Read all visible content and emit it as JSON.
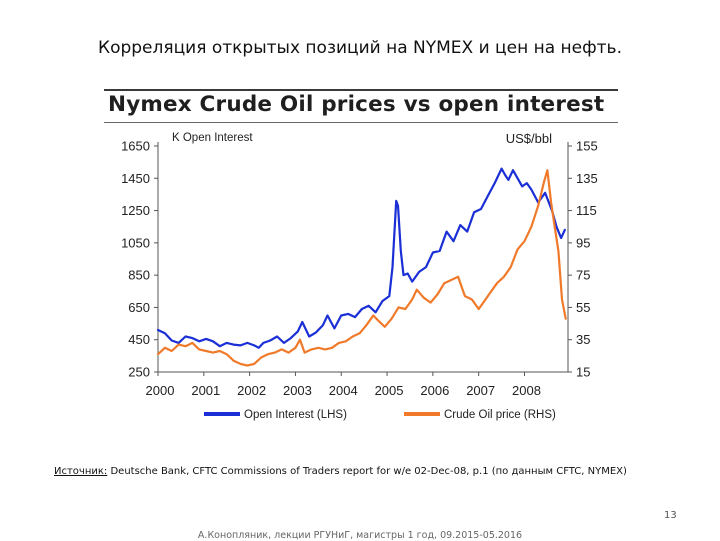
{
  "slide": {
    "title": "Корреляция открытых позиций на NYMEX и цен на нефть.",
    "source_label": "Источник:",
    "source_text": " Deutsche Bank, CFTC Commissions of Traders report for w/e 02-Dec-08, p.1 (по данным CFTC, NYMEX)",
    "page_number": "13",
    "footer": "А.Конопляник, лекции РГУНиГ, магистры 1 год, 09.2015-05.2016"
  },
  "colors": {
    "open_interest": "#1a2fd6",
    "crude_oil": "#f07a2a",
    "axis": "#555555",
    "text": "#222222"
  },
  "chart_data": {
    "type": "line",
    "title": "Nymex Crude Oil prices vs open interest",
    "left_axis_title": "K Open Interest",
    "right_axis_title": "US$/bbl",
    "left_ticks": [
      250,
      450,
      650,
      850,
      1050,
      1250,
      1450,
      1650
    ],
    "right_ticks": [
      15,
      35,
      55,
      75,
      95,
      115,
      135,
      155
    ],
    "ylim_left": [
      250,
      1650
    ],
    "ylim_right": [
      15,
      155
    ],
    "x_ticks": [
      "2000",
      "2001",
      "2002",
      "2003",
      "2004",
      "2005",
      "2006",
      "2007",
      "2008"
    ],
    "xlim": [
      2000,
      2008.95
    ],
    "series": [
      {
        "name": "Open Interest (LHS)",
        "axis": "left",
        "x": [
          2000.0,
          2000.15,
          2000.3,
          2000.45,
          2000.6,
          2000.75,
          2000.9,
          2001.05,
          2001.2,
          2001.35,
          2001.5,
          2001.65,
          2001.8,
          2001.95,
          2002.1,
          2002.2,
          2002.3,
          2002.45,
          2002.6,
          2002.75,
          2002.9,
          2003.05,
          2003.15,
          2003.3,
          2003.45,
          2003.6,
          2003.7,
          2003.85,
          2004.0,
          2004.15,
          2004.3,
          2004.45,
          2004.6,
          2004.75,
          2004.9,
          2005.05,
          2005.12,
          2005.2,
          2005.24,
          2005.3,
          2005.36,
          2005.45,
          2005.55,
          2005.7,
          2005.85,
          2006.0,
          2006.15,
          2006.3,
          2006.45,
          2006.6,
          2006.75,
          2006.9,
          2007.05,
          2007.2,
          2007.35,
          2007.5,
          2007.58,
          2007.65,
          2007.75,
          2007.85,
          2007.95,
          2008.05,
          2008.15,
          2008.3,
          2008.45,
          2008.6,
          2008.7,
          2008.8,
          2008.88
        ],
        "values": [
          510,
          490,
          445,
          430,
          470,
          460,
          440,
          455,
          440,
          410,
          430,
          420,
          415,
          430,
          415,
          400,
          430,
          445,
          470,
          430,
          460,
          500,
          560,
          470,
          495,
          540,
          600,
          520,
          600,
          610,
          590,
          640,
          660,
          620,
          690,
          720,
          900,
          1310,
          1280,
          1000,
          850,
          860,
          810,
          870,
          900,
          990,
          1000,
          1120,
          1060,
          1160,
          1120,
          1240,
          1260,
          1340,
          1420,
          1510,
          1470,
          1440,
          1500,
          1450,
          1400,
          1420,
          1380,
          1300,
          1360,
          1250,
          1150,
          1080,
          1130
        ]
      },
      {
        "name": "Crude Oil price (RHS)",
        "axis": "right",
        "x": [
          2000.0,
          2000.15,
          2000.3,
          2000.45,
          2000.6,
          2000.75,
          2000.9,
          2001.05,
          2001.2,
          2001.35,
          2001.5,
          2001.65,
          2001.8,
          2001.95,
          2002.1,
          2002.25,
          2002.4,
          2002.55,
          2002.7,
          2002.85,
          2003.0,
          2003.1,
          2003.2,
          2003.35,
          2003.5,
          2003.65,
          2003.8,
          2003.95,
          2004.1,
          2004.25,
          2004.4,
          2004.55,
          2004.7,
          2004.8,
          2004.95,
          2005.1,
          2005.25,
          2005.4,
          2005.55,
          2005.65,
          2005.8,
          2005.95,
          2006.1,
          2006.25,
          2006.4,
          2006.55,
          2006.7,
          2006.85,
          2007.0,
          2007.1,
          2007.25,
          2007.4,
          2007.55,
          2007.7,
          2007.85,
          2008.0,
          2008.15,
          2008.3,
          2008.42,
          2008.5,
          2008.58,
          2008.66,
          2008.74,
          2008.82,
          2008.9
        ],
        "values": [
          26,
          30,
          28,
          32,
          31,
          33,
          29,
          28,
          27,
          28,
          26,
          22,
          20,
          19,
          20,
          24,
          26,
          27,
          29,
          27,
          30,
          35,
          27,
          29,
          30,
          29,
          30,
          33,
          34,
          37,
          39,
          44,
          50,
          47,
          43,
          48,
          55,
          54,
          60,
          66,
          61,
          58,
          63,
          70,
          72,
          74,
          62,
          60,
          54,
          58,
          64,
          70,
          74,
          80,
          91,
          96,
          105,
          118,
          132,
          140,
          120,
          105,
          90,
          60,
          48
        ]
      }
    ]
  }
}
